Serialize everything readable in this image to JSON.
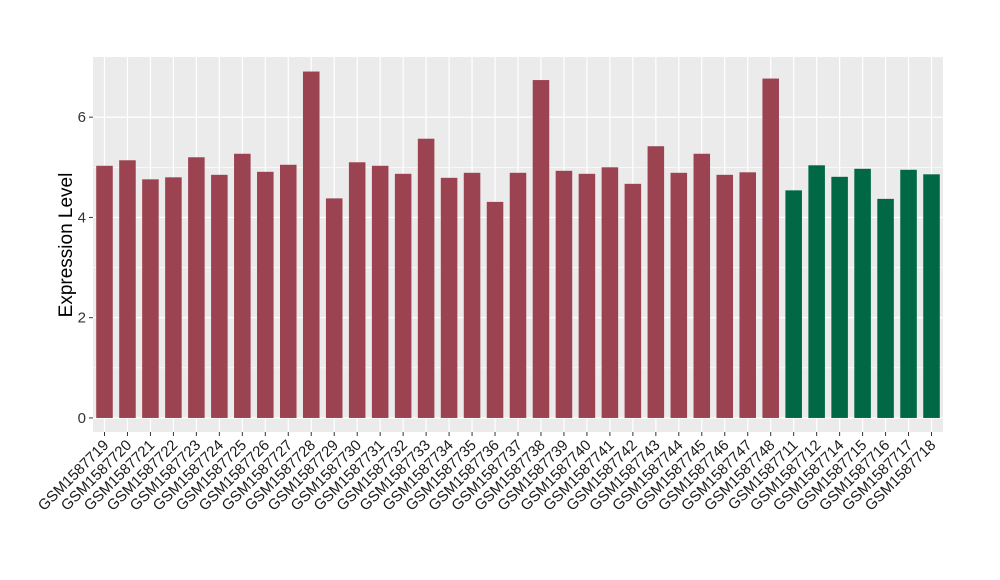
{
  "chart_data": {
    "type": "bar",
    "xlabel": "",
    "ylabel": "Expression Level",
    "ylim": [
      -0.28,
      7.2
    ],
    "yticks": [
      0,
      2,
      4,
      6
    ],
    "grid": true,
    "colors": {
      "group_a": "#9b4350",
      "group_b": "#006844",
      "panel_bg": "#ebebeb",
      "grid": "#ffffff"
    },
    "categories": [
      "GSM1587719",
      "GSM1587720",
      "GSM1587721",
      "GSM1587722",
      "GSM1587723",
      "GSM1587724",
      "GSM1587725",
      "GSM1587726",
      "GSM1587727",
      "GSM1587728",
      "GSM1587729",
      "GSM1587730",
      "GSM1587731",
      "GSM1587732",
      "GSM1587733",
      "GSM1587734",
      "GSM1587735",
      "GSM1587736",
      "GSM1587737",
      "GSM1587738",
      "GSM1587739",
      "GSM1587740",
      "GSM1587741",
      "GSM1587742",
      "GSM1587743",
      "GSM1587744",
      "GSM1587745",
      "GSM1587746",
      "GSM1587747",
      "GSM1587748",
      "GSM1587711",
      "GSM1587712",
      "GSM1587714",
      "GSM1587715",
      "GSM1587716",
      "GSM1587717",
      "GSM1587718"
    ],
    "values": [
      5.03,
      5.14,
      4.76,
      4.8,
      5.2,
      4.85,
      5.27,
      4.91,
      5.05,
      6.91,
      4.38,
      5.1,
      5.03,
      4.87,
      5.57,
      4.79,
      4.89,
      4.31,
      4.89,
      6.74,
      4.93,
      4.87,
      5.0,
      4.67,
      5.42,
      4.89,
      5.27,
      4.85,
      4.9,
      6.77,
      4.54,
      5.04,
      4.81,
      4.97,
      4.37,
      4.95,
      4.86
    ],
    "groups": [
      "a",
      "a",
      "a",
      "a",
      "a",
      "a",
      "a",
      "a",
      "a",
      "a",
      "a",
      "a",
      "a",
      "a",
      "a",
      "a",
      "a",
      "a",
      "a",
      "a",
      "a",
      "a",
      "a",
      "a",
      "a",
      "a",
      "a",
      "a",
      "a",
      "a",
      "b",
      "b",
      "b",
      "b",
      "b",
      "b",
      "b"
    ]
  }
}
